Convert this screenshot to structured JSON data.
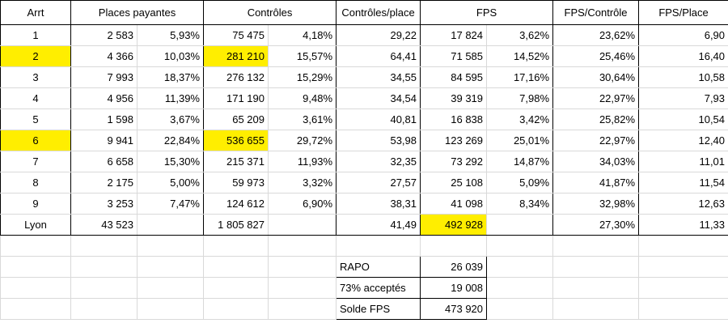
{
  "headers": {
    "arrt": "Arrt",
    "places": "Places payantes",
    "controles": "Contrôles",
    "ctrl_place": "Contrôles/place",
    "fps": "FPS",
    "fps_ctrl": "FPS/Contrôle",
    "fps_place": "FPS/Place"
  },
  "rows": [
    {
      "arrt": "1",
      "places": "2 583",
      "places_pct": "5,93%",
      "ctrl": "75 475",
      "ctrl_pct": "4,18%",
      "ctrl_place": "29,22",
      "fps": "17 824",
      "fps_pct": "3,62%",
      "fps_ctrl": "23,62%",
      "fps_place": "6,90"
    },
    {
      "arrt": "2",
      "places": "4 366",
      "places_pct": "10,03%",
      "ctrl": "281 210",
      "ctrl_pct": "15,57%",
      "ctrl_place": "64,41",
      "fps": "71 585",
      "fps_pct": "14,52%",
      "fps_ctrl": "25,46%",
      "fps_place": "16,40"
    },
    {
      "arrt": "3",
      "places": "7 993",
      "places_pct": "18,37%",
      "ctrl": "276 132",
      "ctrl_pct": "15,29%",
      "ctrl_place": "34,55",
      "fps": "84 595",
      "fps_pct": "17,16%",
      "fps_ctrl": "30,64%",
      "fps_place": "10,58"
    },
    {
      "arrt": "4",
      "places": "4 956",
      "places_pct": "11,39%",
      "ctrl": "171 190",
      "ctrl_pct": "9,48%",
      "ctrl_place": "34,54",
      "fps": "39 319",
      "fps_pct": "7,98%",
      "fps_ctrl": "22,97%",
      "fps_place": "7,93"
    },
    {
      "arrt": "5",
      "places": "1 598",
      "places_pct": "3,67%",
      "ctrl": "65 209",
      "ctrl_pct": "3,61%",
      "ctrl_place": "40,81",
      "fps": "16 838",
      "fps_pct": "3,42%",
      "fps_ctrl": "25,82%",
      "fps_place": "10,54"
    },
    {
      "arrt": "6",
      "places": "9 941",
      "places_pct": "22,84%",
      "ctrl": "536 655",
      "ctrl_pct": "29,72%",
      "ctrl_place": "53,98",
      "fps": "123 269",
      "fps_pct": "25,01%",
      "fps_ctrl": "22,97%",
      "fps_place": "12,40"
    },
    {
      "arrt": "7",
      "places": "6 658",
      "places_pct": "15,30%",
      "ctrl": "215 371",
      "ctrl_pct": "11,93%",
      "ctrl_place": "32,35",
      "fps": "73 292",
      "fps_pct": "14,87%",
      "fps_ctrl": "34,03%",
      "fps_place": "11,01"
    },
    {
      "arrt": "8",
      "places": "2 175",
      "places_pct": "5,00%",
      "ctrl": "59 973",
      "ctrl_pct": "3,32%",
      "ctrl_place": "27,57",
      "fps": "25 108",
      "fps_pct": "5,09%",
      "fps_ctrl": "41,87%",
      "fps_place": "11,54"
    },
    {
      "arrt": "9",
      "places": "3 253",
      "places_pct": "7,47%",
      "ctrl": "124 612",
      "ctrl_pct": "6,90%",
      "ctrl_place": "38,31",
      "fps": "41 098",
      "fps_pct": "8,34%",
      "fps_ctrl": "32,98%",
      "fps_place": "12,63"
    }
  ],
  "total": {
    "arrt": "Lyon",
    "places": "43 523",
    "ctrl": "1 805 827",
    "ctrl_place": "41,49",
    "fps": "492 928",
    "fps_ctrl": "27,30%",
    "fps_place": "11,33"
  },
  "summary": [
    {
      "label": "RAPO",
      "value": "26 039"
    },
    {
      "label": "73% acceptés",
      "value": "19 008"
    },
    {
      "label": "Solde FPS",
      "value": "473 920"
    }
  ],
  "colors": {
    "highlight": "#ffee00"
  }
}
